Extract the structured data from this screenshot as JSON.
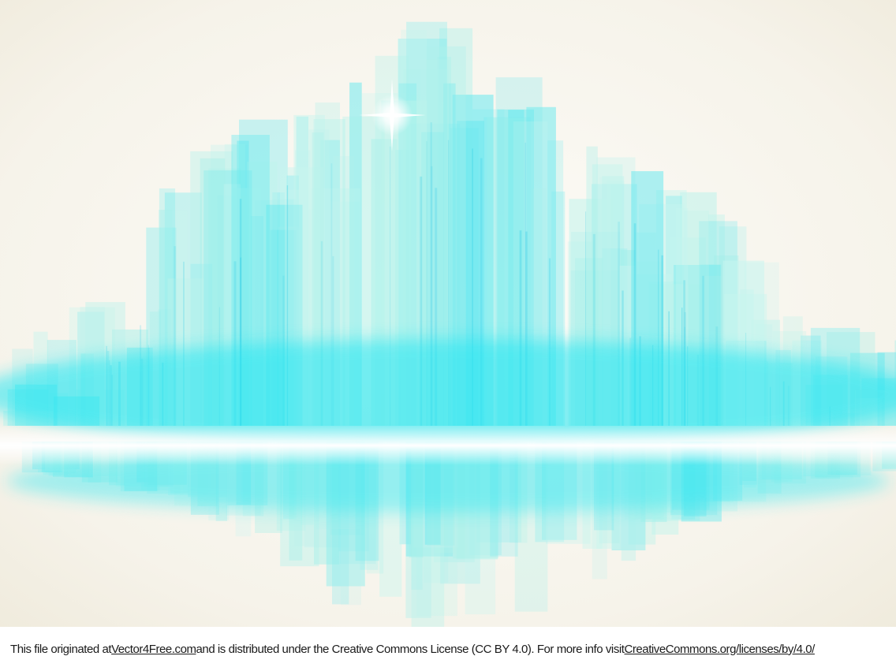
{
  "credit": {
    "prefix": "This file originated at ",
    "source_link": "Vector4Free.com",
    "middle": " and is distributed under the Creative Commons License (CC BY 4.0). For more info visit ",
    "license_link": "CreativeCommons.org/licenses/by/4.0/"
  },
  "colors": {
    "background": "#f3efe2",
    "glow": "#22e6f2",
    "bar_light": "#bdf3ec",
    "bar_mid": "#6eeaf0",
    "horizon": "#ffffff"
  }
}
